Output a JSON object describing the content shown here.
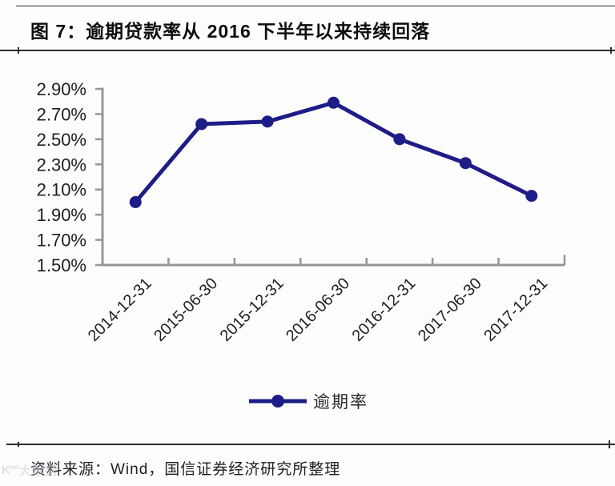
{
  "page": {
    "title": "图 7：逾期贷款率从 2016 下半年以来持续回落",
    "source": "资料来源：Wind，国信证券经济研究所整理",
    "watermark_logo": "K°°",
    "watermark_text": "大数据"
  },
  "chart_data": {
    "type": "line",
    "title": "",
    "xlabel": "",
    "ylabel": "",
    "categories": [
      "2014-12-31",
      "2015-06-30",
      "2015-12-31",
      "2016-06-30",
      "2016-12-31",
      "2017-06-30",
      "2017-12-31"
    ],
    "series": [
      {
        "name": "逾期率",
        "values": [
          2.0,
          2.62,
          2.64,
          2.79,
          2.5,
          2.31,
          2.05
        ]
      }
    ],
    "unit": "%",
    "ylim": [
      1.5,
      2.9
    ],
    "y_tick_step": 0.2,
    "y_ticks": [
      "2.90%",
      "2.70%",
      "2.50%",
      "2.30%",
      "2.10%",
      "1.90%",
      "1.70%",
      "1.50%"
    ],
    "x_tick_label_rotation": -45,
    "grid": "off",
    "legend_position": "bottom-center",
    "colors": {
      "series": "#1d1d87",
      "axis": "#969696",
      "tick_text": "#1f1f1f"
    }
  }
}
